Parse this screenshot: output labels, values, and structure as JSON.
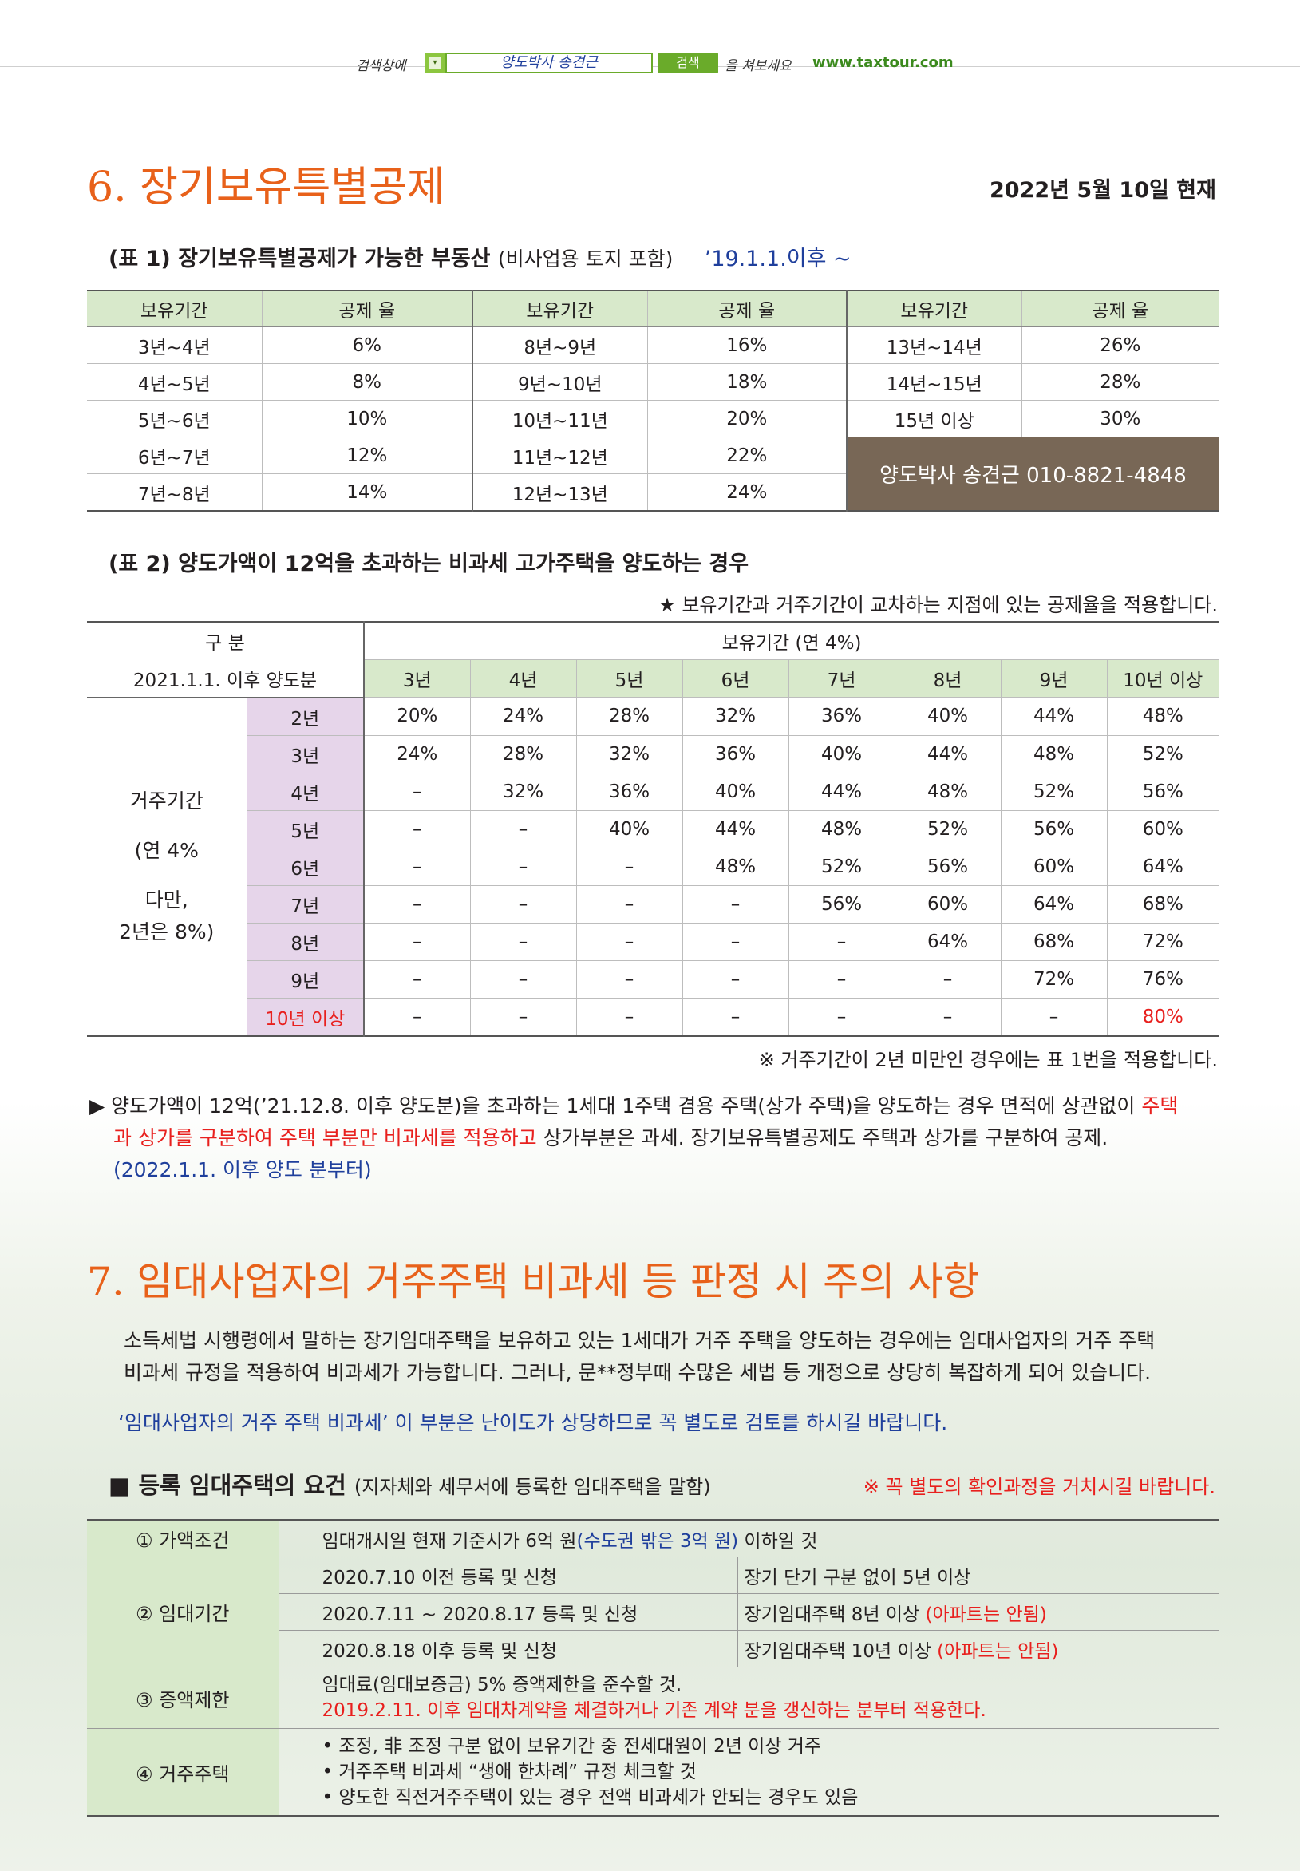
{
  "header": {
    "search_prefix": "검색창에",
    "search_value": "양도박사 송견근",
    "search_button": "검색",
    "search_suffix": "을 쳐보세요",
    "url": "www.taxtour.com"
  },
  "section6": {
    "title": "6. 장기보유특별공제",
    "as_of": "2022년 5월 10일 현재",
    "table1": {
      "caption": "(표 1) 장기보유특별공제가 가능한 부동산",
      "caption_sub": "(비사업용 토지 포함)",
      "caption_date": "’19.1.1.이후 ~",
      "headers": [
        "보유기간",
        "공제 율",
        "보유기간",
        "공제 율",
        "보유기간",
        "공제 율"
      ],
      "rows": [
        [
          "3년~4년",
          "6%",
          "8년~9년",
          "16%",
          "13년~14년",
          "26%"
        ],
        [
          "4년~5년",
          "8%",
          "9년~10년",
          "18%",
          "14년~15년",
          "28%"
        ],
        [
          "5년~6년",
          "10%",
          "10년~11년",
          "20%",
          "15년 이상",
          "30%"
        ],
        [
          "6년~7년",
          "12%",
          "11년~12년",
          "22%"
        ],
        [
          "7년~8년",
          "14%",
          "12년~13년",
          "24%"
        ]
      ],
      "contact": "양도박사 송견근  010-8821-4848"
    },
    "table2": {
      "caption": "(표 2) 양도가액이 12억을 초과하는 비과세 고가주택을 양도하는 경우",
      "note_top": "★ 보유기간과 거주기간이 교차하는 지점에 있는 공제율을 적용합니다.",
      "corner_top": "구 분",
      "corner_bottom": "2021.1.1. 이후 양도분",
      "hold_header": "보유기간 (연 4%)",
      "hold_years": [
        "3년",
        "4년",
        "5년",
        "6년",
        "7년",
        "8년",
        "9년",
        "10년 이상"
      ],
      "reside_label_1": "거주기간",
      "reside_label_2": "(연 4%",
      "reside_label_3": "다만,",
      "reside_label_4": "2년은 8%)",
      "rows": [
        {
          "year": "2년",
          "vals": [
            "20%",
            "24%",
            "28%",
            "32%",
            "36%",
            "40%",
            "44%",
            "48%"
          ]
        },
        {
          "year": "3년",
          "vals": [
            "24%",
            "28%",
            "32%",
            "36%",
            "40%",
            "44%",
            "48%",
            "52%"
          ]
        },
        {
          "year": "4년",
          "vals": [
            "–",
            "32%",
            "36%",
            "40%",
            "44%",
            "48%",
            "52%",
            "56%"
          ]
        },
        {
          "year": "5년",
          "vals": [
            "–",
            "–",
            "40%",
            "44%",
            "48%",
            "52%",
            "56%",
            "60%"
          ]
        },
        {
          "year": "6년",
          "vals": [
            "–",
            "–",
            "–",
            "48%",
            "52%",
            "56%",
            "60%",
            "64%"
          ]
        },
        {
          "year": "7년",
          "vals": [
            "–",
            "–",
            "–",
            "–",
            "56%",
            "60%",
            "64%",
            "68%"
          ]
        },
        {
          "year": "8년",
          "vals": [
            "–",
            "–",
            "–",
            "–",
            "–",
            "64%",
            "68%",
            "72%"
          ]
        },
        {
          "year": "9년",
          "vals": [
            "–",
            "–",
            "–",
            "–",
            "–",
            "–",
            "72%",
            "76%"
          ]
        },
        {
          "year": "10년 이상",
          "vals": [
            "–",
            "–",
            "–",
            "–",
            "–",
            "–",
            "–",
            "80%"
          ]
        }
      ],
      "note_bottom": "※ 거주기간이 2년 미만인 경우에는 표 1번을 적용합니다."
    },
    "bullet": {
      "part1": "▶ 양도가액이 12억(’21.12.8. 이후 양도분)을 초과하는 1세대 1주택 겸용 주택(상가 주택)을 양도하는 경우 면적에 상관없이 ",
      "part2_red": "주택",
      "part3_red": "과 상가를 구분하여 주택 부분만 비과세를 적용하고",
      "part4": " 상가부분은 과세. 장기보유특별공제도 주택과 상가를 구분하여 공제.",
      "part5_blue": "(2022.1.1. 이후 양도 분부터)"
    }
  },
  "section7": {
    "title": "7. 임대사업자의 거주주택 비과세 등 판정 시 주의 사항",
    "para1_line1": "소득세법 시행령에서 말하는 장기임대주택을 보유하고 있는 1세대가 거주 주택을 양도하는 경우에는 임대사업자의 거주 주택",
    "para1_line2": "비과세 규정을 적용하여 비과세가 가능합니다. 그러나, 문**정부때 수많은 세법 등 개정으로 상당히 복잡하게 되어 있습니다.",
    "para2": "‘임대사업자의 거주 주택 비과세’ 이 부분은 난이도가 상당하므로 꼭 별도로 검토를 하시길 바랍니다.",
    "box_title": "■ 등록 임대주택의 요건",
    "box_title_sub": "(지자체와 세무서에 등록한 임대주택을 말함)",
    "box_note": "※ 꼭 별도의 확인과정을 거치시길 바랍니다.",
    "req": {
      "r1_label": "① 가액조건",
      "r1_text": "임대개시일 현재 기준시가 6억 원",
      "r1_blue": "(수도권 밖은 3억 원)",
      "r1_tail": " 이하일 것",
      "r2_label": "② 임대기간",
      "r2_rows": [
        {
          "left": "2020.7.10 이전 등록 및 신청",
          "right": "장기 단기 구분 없이 5년 이상",
          "right_red": ""
        },
        {
          "left": "2020.7.11 ~ 2020.8.17 등록 및 신청",
          "right": "장기임대주택 8년 이상 ",
          "right_red": "(아파트는 안됨)"
        },
        {
          "left": "2020.8.18 이후 등록 및 신청",
          "right": "장기임대주택 10년 이상 ",
          "right_red": "(아파트는 안됨)"
        }
      ],
      "r3_label": "③ 증액제한",
      "r3_line1": "임대료(임대보증금) 5% 증액제한을 준수할 것.",
      "r3_line2": "2019.2.11. 이후 임대차계약을 체결하거나 기존 계약 분을 갱신하는 분부터 적용한다.",
      "r4_label": "④ 거주주택",
      "r4_items": [
        "조정, 非 조정 구분 없이 보유기간 중 전세대원이 2년 이상 거주",
        "거주주택 비과세 “생애 한차례” 규정 체크할 것",
        "양도한 직전거주주택이 있는 경우 전액 비과세가 안되는 경우도 있음"
      ]
    }
  }
}
